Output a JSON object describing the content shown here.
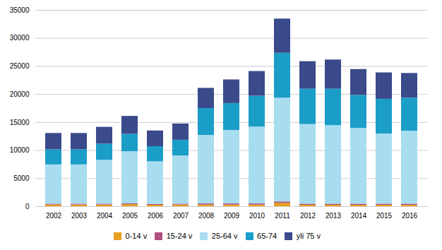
{
  "chart_data": {
    "type": "bar",
    "stacked": true,
    "categories": [
      "2002",
      "2003",
      "2004",
      "2005",
      "2006",
      "2007",
      "2008",
      "2009",
      "2010",
      "2011",
      "2012",
      "2013",
      "2014",
      "2015",
      "2016"
    ],
    "series": [
      {
        "name": "0-14 v",
        "color": "#e8a020",
        "values": [
          300,
          300,
          300,
          350,
          250,
          300,
          300,
          300,
          300,
          600,
          250,
          250,
          250,
          250,
          250
        ]
      },
      {
        "name": "15-24 v",
        "color": "#b05080",
        "values": [
          150,
          150,
          150,
          150,
          150,
          150,
          200,
          200,
          200,
          250,
          200,
          200,
          200,
          200,
          200
        ]
      },
      {
        "name": "25-64 v",
        "color": "#a8ddf0",
        "values": [
          7000,
          7000,
          7800,
          9300,
          7600,
          8600,
          12200,
          13100,
          13700,
          18500,
          14200,
          14000,
          13500,
          12500,
          13000
        ]
      },
      {
        "name": "65-74",
        "color": "#1a9ec8",
        "values": [
          2700,
          2700,
          2900,
          3100,
          2700,
          2800,
          4800,
          4800,
          5500,
          8000,
          6300,
          6500,
          5900,
          6200,
          5900
        ]
      },
      {
        "name": "yli 75 v",
        "color": "#3a4a8a",
        "values": [
          2900,
          2900,
          3000,
          3200,
          2800,
          2900,
          3600,
          4200,
          4400,
          6100,
          4900,
          5200,
          4600,
          4700,
          4400
        ]
      }
    ],
    "ylim": [
      0,
      35000
    ],
    "yticks": [
      0,
      5000,
      10000,
      15000,
      20000,
      25000,
      30000,
      35000
    ],
    "grid": true,
    "legend": "bottom"
  }
}
